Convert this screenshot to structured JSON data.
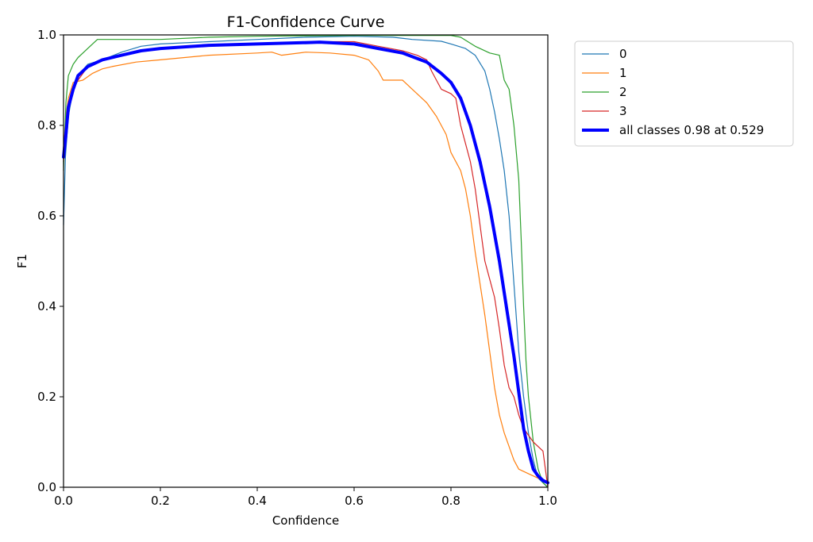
{
  "chart_data": {
    "type": "line",
    "title": "F1-Confidence Curve",
    "xlabel": "Confidence",
    "ylabel": "F1",
    "xlim": [
      0,
      1
    ],
    "ylim": [
      0,
      1
    ],
    "x_ticks": [
      "0.0",
      "0.2",
      "0.4",
      "0.6",
      "0.8",
      "1.0"
    ],
    "y_ticks": [
      "0.0",
      "0.2",
      "0.4",
      "0.6",
      "0.8",
      "1.0"
    ],
    "grid": false,
    "legend_position": "outside-upper-right",
    "series": [
      {
        "name": "0",
        "color": "#1f77b4",
        "width": 1.2,
        "points": [
          [
            0,
            0.58
          ],
          [
            0.004,
            0.73
          ],
          [
            0.01,
            0.82
          ],
          [
            0.02,
            0.88
          ],
          [
            0.03,
            0.91
          ],
          [
            0.05,
            0.935
          ],
          [
            0.08,
            0.945
          ],
          [
            0.12,
            0.962
          ],
          [
            0.16,
            0.975
          ],
          [
            0.2,
            0.98
          ],
          [
            0.3,
            0.985
          ],
          [
            0.4,
            0.99
          ],
          [
            0.5,
            0.995
          ],
          [
            0.6,
            0.997
          ],
          [
            0.68,
            0.995
          ],
          [
            0.72,
            0.99
          ],
          [
            0.78,
            0.986
          ],
          [
            0.8,
            0.98
          ],
          [
            0.83,
            0.97
          ],
          [
            0.85,
            0.955
          ],
          [
            0.87,
            0.92
          ],
          [
            0.88,
            0.88
          ],
          [
            0.89,
            0.83
          ],
          [
            0.9,
            0.77
          ],
          [
            0.91,
            0.7
          ],
          [
            0.92,
            0.6
          ],
          [
            0.93,
            0.45
          ],
          [
            0.94,
            0.3
          ],
          [
            0.95,
            0.2
          ],
          [
            0.96,
            0.12
          ],
          [
            0.97,
            0.06
          ],
          [
            0.98,
            0.02
          ],
          [
            0.99,
            0.01
          ],
          [
            1.0,
            0.0
          ]
        ]
      },
      {
        "name": "1",
        "color": "#ff7f0e",
        "width": 1.2,
        "points": [
          [
            0,
            0.75
          ],
          [
            0.005,
            0.82
          ],
          [
            0.01,
            0.86
          ],
          [
            0.02,
            0.895
          ],
          [
            0.04,
            0.9
          ],
          [
            0.06,
            0.915
          ],
          [
            0.08,
            0.925
          ],
          [
            0.1,
            0.93
          ],
          [
            0.15,
            0.94
          ],
          [
            0.2,
            0.945
          ],
          [
            0.3,
            0.955
          ],
          [
            0.4,
            0.96
          ],
          [
            0.43,
            0.962
          ],
          [
            0.45,
            0.955
          ],
          [
            0.5,
            0.962
          ],
          [
            0.55,
            0.96
          ],
          [
            0.6,
            0.955
          ],
          [
            0.63,
            0.945
          ],
          [
            0.65,
            0.92
          ],
          [
            0.66,
            0.9
          ],
          [
            0.7,
            0.9
          ],
          [
            0.72,
            0.88
          ],
          [
            0.75,
            0.85
          ],
          [
            0.77,
            0.82
          ],
          [
            0.79,
            0.78
          ],
          [
            0.8,
            0.74
          ],
          [
            0.82,
            0.7
          ],
          [
            0.83,
            0.66
          ],
          [
            0.84,
            0.6
          ],
          [
            0.85,
            0.52
          ],
          [
            0.86,
            0.45
          ],
          [
            0.87,
            0.38
          ],
          [
            0.88,
            0.3
          ],
          [
            0.89,
            0.22
          ],
          [
            0.9,
            0.16
          ],
          [
            0.91,
            0.12
          ],
          [
            0.92,
            0.09
          ],
          [
            0.93,
            0.06
          ],
          [
            0.94,
            0.04
          ],
          [
            0.96,
            0.03
          ],
          [
            0.98,
            0.02
          ],
          [
            1.0,
            0.01
          ]
        ]
      },
      {
        "name": "2",
        "color": "#2ca02c",
        "width": 1.2,
        "points": [
          [
            0,
            0.7
          ],
          [
            0.005,
            0.85
          ],
          [
            0.01,
            0.91
          ],
          [
            0.02,
            0.935
          ],
          [
            0.03,
            0.95
          ],
          [
            0.04,
            0.96
          ],
          [
            0.05,
            0.97
          ],
          [
            0.07,
            0.99
          ],
          [
            0.1,
            0.99
          ],
          [
            0.2,
            0.99
          ],
          [
            0.3,
            0.995
          ],
          [
            0.4,
            0.997
          ],
          [
            0.5,
            0.998
          ],
          [
            0.6,
            0.999
          ],
          [
            0.7,
            0.999
          ],
          [
            0.8,
            0.999
          ],
          [
            0.82,
            0.995
          ],
          [
            0.85,
            0.975
          ],
          [
            0.88,
            0.96
          ],
          [
            0.9,
            0.955
          ],
          [
            0.91,
            0.9
          ],
          [
            0.92,
            0.88
          ],
          [
            0.93,
            0.8
          ],
          [
            0.94,
            0.68
          ],
          [
            0.945,
            0.55
          ],
          [
            0.95,
            0.4
          ],
          [
            0.955,
            0.28
          ],
          [
            0.96,
            0.2
          ],
          [
            0.97,
            0.1
          ],
          [
            0.98,
            0.04
          ],
          [
            0.99,
            0.01
          ],
          [
            1.0,
            0.0
          ]
        ]
      },
      {
        "name": "3",
        "color": "#d62728",
        "width": 1.2,
        "points": [
          [
            0,
            0.72
          ],
          [
            0.005,
            0.8
          ],
          [
            0.01,
            0.85
          ],
          [
            0.02,
            0.88
          ],
          [
            0.03,
            0.9
          ],
          [
            0.05,
            0.93
          ],
          [
            0.08,
            0.945
          ],
          [
            0.12,
            0.955
          ],
          [
            0.16,
            0.965
          ],
          [
            0.2,
            0.97
          ],
          [
            0.3,
            0.975
          ],
          [
            0.4,
            0.98
          ],
          [
            0.5,
            0.985
          ],
          [
            0.6,
            0.985
          ],
          [
            0.65,
            0.975
          ],
          [
            0.7,
            0.965
          ],
          [
            0.73,
            0.955
          ],
          [
            0.75,
            0.945
          ],
          [
            0.76,
            0.92
          ],
          [
            0.77,
            0.9
          ],
          [
            0.78,
            0.88
          ],
          [
            0.8,
            0.87
          ],
          [
            0.81,
            0.86
          ],
          [
            0.82,
            0.8
          ],
          [
            0.83,
            0.76
          ],
          [
            0.84,
            0.72
          ],
          [
            0.85,
            0.66
          ],
          [
            0.86,
            0.58
          ],
          [
            0.87,
            0.5
          ],
          [
            0.88,
            0.46
          ],
          [
            0.89,
            0.42
          ],
          [
            0.9,
            0.35
          ],
          [
            0.91,
            0.27
          ],
          [
            0.92,
            0.22
          ],
          [
            0.93,
            0.2
          ],
          [
            0.94,
            0.16
          ],
          [
            0.95,
            0.13
          ],
          [
            0.97,
            0.1
          ],
          [
            0.99,
            0.08
          ],
          [
            1.0,
            0.0
          ]
        ]
      },
      {
        "name": "all classes 0.98 at 0.529",
        "color": "#0000ff",
        "width": 4,
        "points": [
          [
            0,
            0.73
          ],
          [
            0.005,
            0.78
          ],
          [
            0.01,
            0.84
          ],
          [
            0.02,
            0.88
          ],
          [
            0.03,
            0.91
          ],
          [
            0.05,
            0.93
          ],
          [
            0.08,
            0.945
          ],
          [
            0.12,
            0.955
          ],
          [
            0.16,
            0.965
          ],
          [
            0.2,
            0.97
          ],
          [
            0.3,
            0.977
          ],
          [
            0.4,
            0.98
          ],
          [
            0.5,
            0.983
          ],
          [
            0.529,
            0.984
          ],
          [
            0.6,
            0.98
          ],
          [
            0.65,
            0.97
          ],
          [
            0.7,
            0.96
          ],
          [
            0.75,
            0.94
          ],
          [
            0.78,
            0.915
          ],
          [
            0.8,
            0.895
          ],
          [
            0.82,
            0.86
          ],
          [
            0.84,
            0.8
          ],
          [
            0.86,
            0.72
          ],
          [
            0.88,
            0.62
          ],
          [
            0.9,
            0.5
          ],
          [
            0.91,
            0.43
          ],
          [
            0.92,
            0.36
          ],
          [
            0.93,
            0.29
          ],
          [
            0.94,
            0.21
          ],
          [
            0.95,
            0.13
          ],
          [
            0.96,
            0.08
          ],
          [
            0.97,
            0.04
          ],
          [
            0.98,
            0.025
          ],
          [
            0.99,
            0.015
          ],
          [
            1.0,
            0.01
          ]
        ]
      }
    ]
  }
}
